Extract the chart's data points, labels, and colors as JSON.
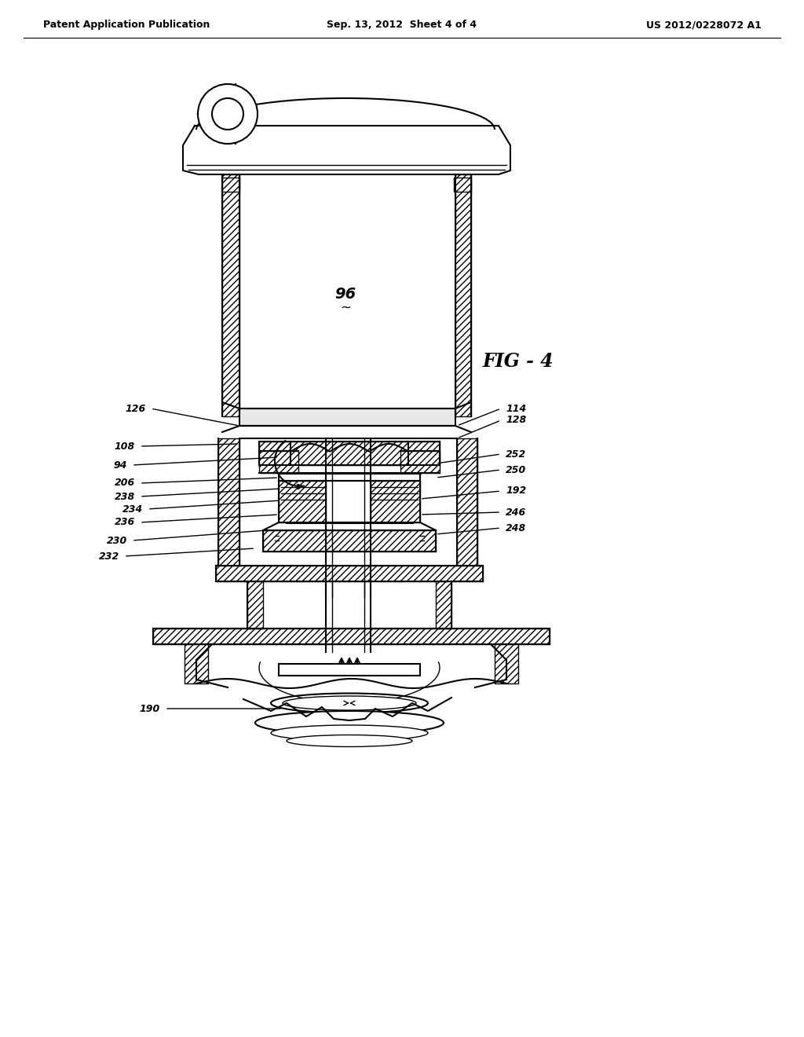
{
  "header_left": "Patent Application Publication",
  "header_center": "Sep. 13, 2012  Sheet 4 of 4",
  "header_right": "US 2012/0228072 A1",
  "fig_label": "FIG - 4",
  "label_96": "96",
  "bg_color": "#ffffff",
  "line_color": "#000000"
}
